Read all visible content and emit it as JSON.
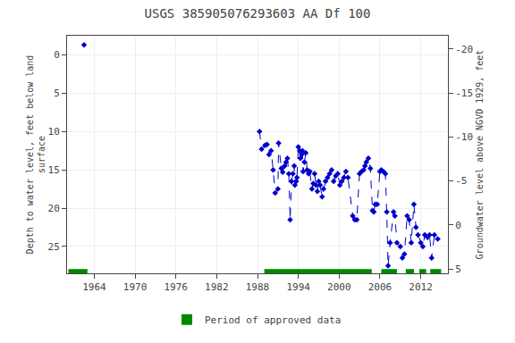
{
  "chart_data": {
    "type": "line",
    "title": "USGS 385905076293603 AA Df 100",
    "ylabel": "Depth to water level, feet below land\nsurface",
    "y2label": "Groundwater level above NGVD 1929, feet",
    "x": [
      1962.5,
      null,
      1988.3,
      1988.6,
      1989.1,
      1989.4,
      1989.7,
      1990.0,
      1990.3,
      1990.6,
      1991.0,
      1991.1,
      1991.5,
      1991.7,
      1992.0,
      1992.2,
      1992.4,
      1992.6,
      1992.8,
      1993.0,
      1993.2,
      1993.4,
      1993.5,
      1993.7,
      1993.8,
      1994.0,
      1994.2,
      1994.3,
      1994.5,
      1994.6,
      1994.7,
      1994.9,
      1995.1,
      1995.3,
      1995.5,
      1995.7,
      1996.0,
      1996.2,
      1996.4,
      1996.6,
      1996.8,
      1997.0,
      1997.2,
      1997.5,
      1997.7,
      1998.0,
      1998.3,
      1998.6,
      1998.9,
      1999.2,
      1999.5,
      1999.8,
      2000.1,
      2000.4,
      2000.7,
      2001.0,
      2001.3,
      2002.0,
      2002.3,
      2002.6,
      2003.0,
      2003.3,
      2003.6,
      2003.8,
      2004.0,
      2004.3,
      2004.6,
      2004.9,
      2005.1,
      2005.3,
      2005.6,
      2006.0,
      2006.2,
      2006.5,
      2006.8,
      2007.0,
      2007.2,
      2007.5,
      2008.0,
      2008.2,
      2008.5,
      2009.0,
      2009.3,
      2009.6,
      2010.0,
      2010.3,
      2010.6,
      2011.0,
      2011.3,
      2011.6,
      2012.0,
      2012.3,
      2012.6,
      2013.0,
      2013.3,
      2013.6,
      2014.0,
      2014.5
    ],
    "values": [
      -1.3,
      null,
      10.0,
      12.3,
      11.8,
      11.7,
      13.0,
      12.5,
      15.0,
      18.0,
      17.5,
      11.5,
      14.8,
      15.3,
      14.5,
      14.0,
      13.5,
      15.5,
      21.5,
      16.5,
      15.5,
      14.5,
      17.0,
      16.5,
      16.0,
      12.0,
      12.5,
      13.5,
      13.0,
      12.5,
      15.2,
      14.0,
      12.8,
      15.0,
      15.5,
      15.2,
      17.5,
      16.8,
      15.5,
      17.0,
      17.8,
      16.5,
      17.0,
      18.5,
      17.5,
      16.5,
      16.0,
      15.5,
      15.0,
      16.5,
      15.8,
      15.5,
      17.0,
      16.5,
      16.0,
      15.2,
      16.0,
      21.0,
      21.5,
      21.5,
      15.5,
      15.2,
      15.0,
      14.5,
      14.0,
      13.5,
      14.8,
      20.3,
      20.5,
      19.5,
      19.5,
      15.2,
      15.0,
      15.2,
      15.5,
      20.5,
      27.5,
      24.5,
      20.5,
      21.0,
      24.5,
      25.0,
      26.5,
      26.0,
      21.0,
      21.5,
      24.5,
      19.5,
      22.5,
      23.5,
      24.5,
      25.0,
      23.5,
      23.8,
      23.5,
      26.5,
      23.5,
      24.0
    ],
    "color": "#0000cc",
    "marker": "diamond",
    "line_style": "dashed",
    "xlim": [
      1960,
      2016
    ],
    "xticks": [
      1964,
      1970,
      1976,
      1982,
      1988,
      1994,
      2000,
      2006,
      2012
    ],
    "ylim": [
      28.5,
      -2.5
    ],
    "yticks": [
      0,
      5,
      10,
      15,
      20,
      25
    ],
    "y2lim": [
      5.5,
      -21.5
    ],
    "y2ticks": [
      5,
      0,
      -5,
      -10,
      -15,
      -20
    ],
    "grid": true,
    "legend": "bottom",
    "approved_periods": {
      "name": "Period of approved data",
      "color": "#008800",
      "ranges": [
        [
          1960.2,
          1963.0
        ],
        [
          1989.0,
          2004.8
        ],
        [
          2006.2,
          2008.5
        ],
        [
          2009.8,
          2011.0
        ],
        [
          2011.8,
          2012.8
        ],
        [
          2013.4,
          2015.0
        ]
      ]
    }
  }
}
